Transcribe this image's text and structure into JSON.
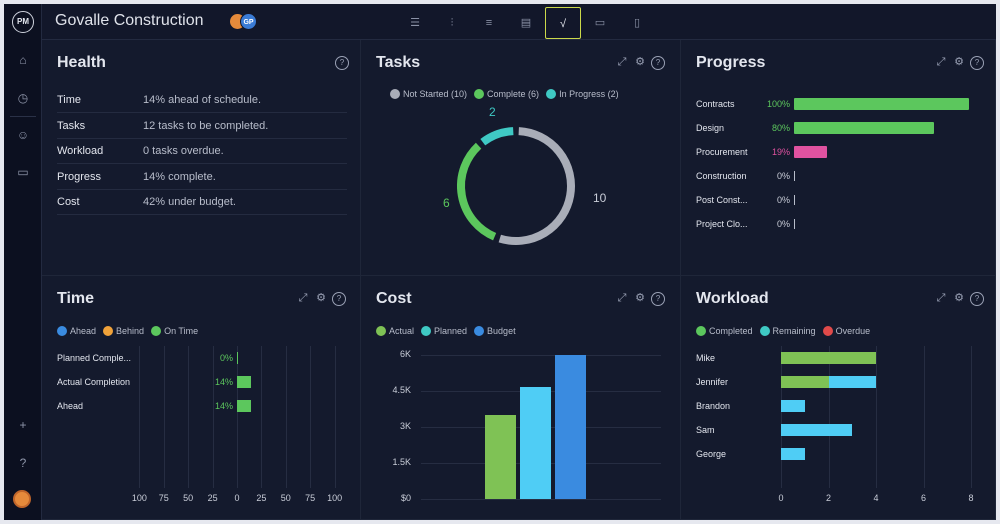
{
  "app": {
    "logo_text": "PM",
    "project_title": "Govalle Construction",
    "avatars": [
      {
        "initials": "",
        "color": "#e58a3b"
      },
      {
        "initials": "GP",
        "color": "#3a7bd5"
      }
    ]
  },
  "view_icons": [
    "list-view-icon",
    "board-view-icon",
    "gantt-view-icon",
    "sheet-view-icon",
    "dashboard-view-icon",
    "calendar-view-icon",
    "files-view-icon"
  ],
  "view_glyphs": [
    "☰",
    "⫶",
    "≡",
    "▤",
    "√",
    "▭",
    "▯"
  ],
  "active_view": 4,
  "rail_glyphs": {
    "home": "⌂",
    "clock": "◷",
    "people": "☺",
    "briefcase": "▭",
    "plus": "+",
    "help": "?"
  },
  "panel_tools": {
    "expand": "⤢",
    "gear": "⚙",
    "help": "?"
  },
  "health": {
    "title": "Health",
    "rows": [
      {
        "label": "Time",
        "value": "14% ahead of schedule."
      },
      {
        "label": "Tasks",
        "value": "12 tasks to be completed."
      },
      {
        "label": "Workload",
        "value": "0 tasks overdue."
      },
      {
        "label": "Progress",
        "value": "14% complete."
      },
      {
        "label": "Cost",
        "value": "42% under budget."
      }
    ]
  },
  "tasks": {
    "title": "Tasks",
    "legend": [
      {
        "label": "Not Started (10)",
        "color": "#a9adb8"
      },
      {
        "label": "Complete (6)",
        "color": "#5cc75d"
      },
      {
        "label": "In Progress (2)",
        "color": "#3fc9c4"
      }
    ],
    "segments": [
      {
        "label": "10",
        "value": 10,
        "color": "#a9adb8"
      },
      {
        "label": "6",
        "value": 6,
        "color": "#5cc75d"
      },
      {
        "label": "2",
        "value": 2,
        "color": "#3fc9c4"
      }
    ]
  },
  "progress": {
    "title": "Progress",
    "rows": [
      {
        "label": "Contracts",
        "pct_text": "100%",
        "pct": 100,
        "color": "#5cc75d"
      },
      {
        "label": "Design",
        "pct_text": "80%",
        "pct": 80,
        "color": "#5cc75d"
      },
      {
        "label": "Procurement",
        "pct_text": "19%",
        "pct": 19,
        "color": "#e052a0"
      },
      {
        "label": "Construction",
        "pct_text": "0%",
        "pct": 0,
        "color": "#b8bdcb"
      },
      {
        "label": "Post Const...",
        "pct_text": "0%",
        "pct": 0,
        "color": "#b8bdcb"
      },
      {
        "label": "Project Clo...",
        "pct_text": "0%",
        "pct": 0,
        "color": "#b8bdcb"
      }
    ]
  },
  "time": {
    "title": "Time",
    "legend": [
      {
        "label": "Ahead",
        "color": "#3a8be0"
      },
      {
        "label": "Behind",
        "color": "#f0a23a"
      },
      {
        "label": "On Time",
        "color": "#5cc75d"
      }
    ],
    "rows": [
      {
        "label": "Planned Comple...",
        "pct_text": "0%",
        "pct": 0
      },
      {
        "label": "Actual Completion",
        "pct_text": "14%",
        "pct": 14
      },
      {
        "label": "Ahead",
        "pct_text": "14%",
        "pct": 14
      }
    ],
    "axis": [
      "100",
      "75",
      "50",
      "25",
      "0",
      "25",
      "50",
      "75",
      "100"
    ]
  },
  "cost": {
    "title": "Cost",
    "legend": [
      {
        "label": "Actual",
        "color": "#7fc255"
      },
      {
        "label": "Planned",
        "color": "#3fc9c4"
      },
      {
        "label": "Budget",
        "color": "#3a8be0"
      }
    ],
    "y_ticks": [
      "6K",
      "4.5K",
      "3K",
      "1.5K",
      "$0"
    ],
    "ymax": 6000,
    "bars": [
      {
        "series": "Actual",
        "value": 3500,
        "color": "#7fc255"
      },
      {
        "series": "Planned",
        "value": 4650,
        "color": "#4fcdf5"
      },
      {
        "series": "Budget",
        "value": 6000,
        "color": "#3a8be0"
      }
    ]
  },
  "workload": {
    "title": "Workload",
    "legend": [
      {
        "label": "Completed",
        "color": "#5cc75d"
      },
      {
        "label": "Remaining",
        "color": "#3fc9c4"
      },
      {
        "label": "Overdue",
        "color": "#e04a4a"
      }
    ],
    "x_ticks": [
      "0",
      "2",
      "4",
      "6",
      "8"
    ],
    "xmax": 8,
    "people": [
      {
        "name": "Mike",
        "completed": 4,
        "remaining": 0
      },
      {
        "name": "Jennifer",
        "completed": 2,
        "remaining": 2
      },
      {
        "name": "Brandon",
        "completed": 0,
        "remaining": 1
      },
      {
        "name": "Sam",
        "completed": 0,
        "remaining": 3
      },
      {
        "name": "George",
        "completed": 0,
        "remaining": 1
      }
    ]
  },
  "chart_data": [
    {
      "type": "pie",
      "title": "Tasks",
      "categories": [
        "Not Started",
        "Complete",
        "In Progress"
      ],
      "values": [
        10,
        6,
        2
      ]
    },
    {
      "type": "bar",
      "title": "Progress",
      "categories": [
        "Contracts",
        "Design",
        "Procurement",
        "Construction",
        "Post Const...",
        "Project Clo..."
      ],
      "values": [
        100,
        80,
        19,
        0,
        0,
        0
      ]
    },
    {
      "type": "bar",
      "title": "Time",
      "categories": [
        "Planned Comple...",
        "Actual Completion",
        "Ahead"
      ],
      "values": [
        0,
        14,
        14
      ],
      "xlim": [
        -100,
        100
      ]
    },
    {
      "type": "bar",
      "title": "Cost",
      "categories": [
        "Actual",
        "Planned",
        "Budget"
      ],
      "values": [
        3500,
        4650,
        6000
      ],
      "ylim": [
        0,
        6000
      ]
    },
    {
      "type": "bar",
      "title": "Workload",
      "categories": [
        "Mike",
        "Jennifer",
        "Brandon",
        "Sam",
        "George"
      ],
      "series": [
        {
          "name": "Completed",
          "values": [
            4,
            2,
            0,
            0,
            0
          ]
        },
        {
          "name": "Remaining",
          "values": [
            0,
            2,
            1,
            3,
            1
          ]
        },
        {
          "name": "Overdue",
          "values": [
            0,
            0,
            0,
            0,
            0
          ]
        }
      ],
      "xlim": [
        0,
        8
      ]
    }
  ]
}
